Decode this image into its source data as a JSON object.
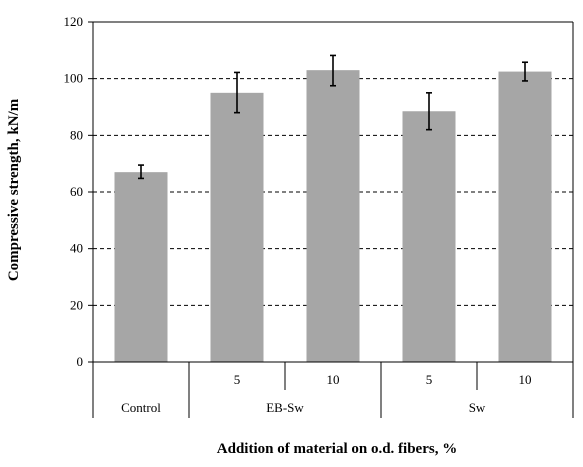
{
  "chart_data": {
    "type": "bar",
    "categories": [
      {
        "group": "Control",
        "sub": ""
      },
      {
        "group": "EB-Sw",
        "sub": "5"
      },
      {
        "group": "EB-Sw",
        "sub": "10"
      },
      {
        "group": "Sw",
        "sub": "5"
      },
      {
        "group": "Sw",
        "sub": "10"
      }
    ],
    "groups": [
      "Control",
      "EB-Sw",
      "Sw"
    ],
    "values": [
      67,
      95,
      103,
      88.5,
      102.5
    ],
    "error_low": [
      64.8,
      88,
      97.5,
      82,
      99.2
    ],
    "error_high": [
      69.5,
      102.2,
      108.2,
      95,
      105.8
    ],
    "xlabel": "Addition of material on o.d. fibers, %",
    "ylabel": "Compressive strength, kN/m",
    "ylim": [
      0,
      120
    ],
    "yticks": [
      0,
      20,
      40,
      60,
      80,
      100,
      120
    ],
    "grid": "horizontal dashed",
    "bar_color": "#a6a6a6",
    "error_color": "#000000"
  }
}
